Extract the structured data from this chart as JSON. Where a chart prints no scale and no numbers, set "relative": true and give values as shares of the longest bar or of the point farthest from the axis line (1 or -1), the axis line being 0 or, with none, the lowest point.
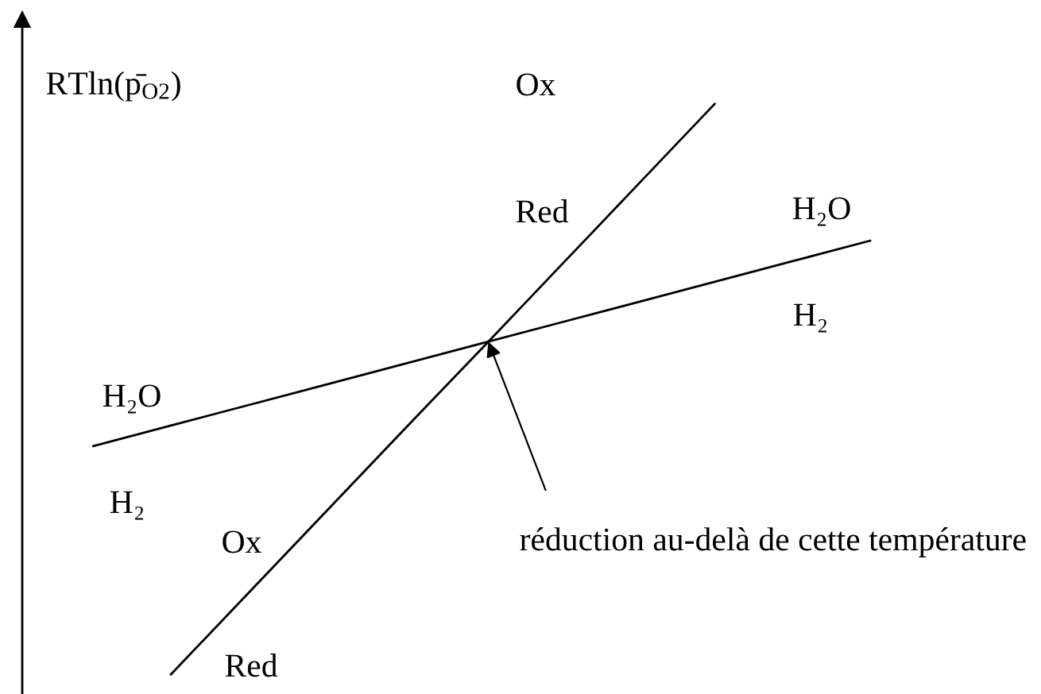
{
  "chart_data": {
    "type": "line",
    "relative": true,
    "ylabel": "RTln(p̄$_{O2}$)",
    "categories": [
      null,
      null,
      null,
      null,
      null,
      null,
      null,
      null,
      null,
      null,
      null
    ],
    "series": [
      {
        "color": "#000000",
        "values": [
          null,
          0,
          0.143,
          0.286,
          0.429,
          0.571,
          0.714,
          0.857,
          1,
          null,
          null
        ]
      },
      {
        "color": "#000000",
        "values": [
          0.4,
          0.436,
          0.472,
          0.508,
          0.544,
          0.58,
          0.616,
          0.652,
          0.688,
          0.724,
          0.76
        ]
      }
    ],
    "annotations": [
      "Ox",
      "Red",
      "H₂O",
      "H₂",
      "H₂O",
      "H₂",
      "Ox",
      "Red",
      "réduction au-delà de cette température"
    ]
  }
}
